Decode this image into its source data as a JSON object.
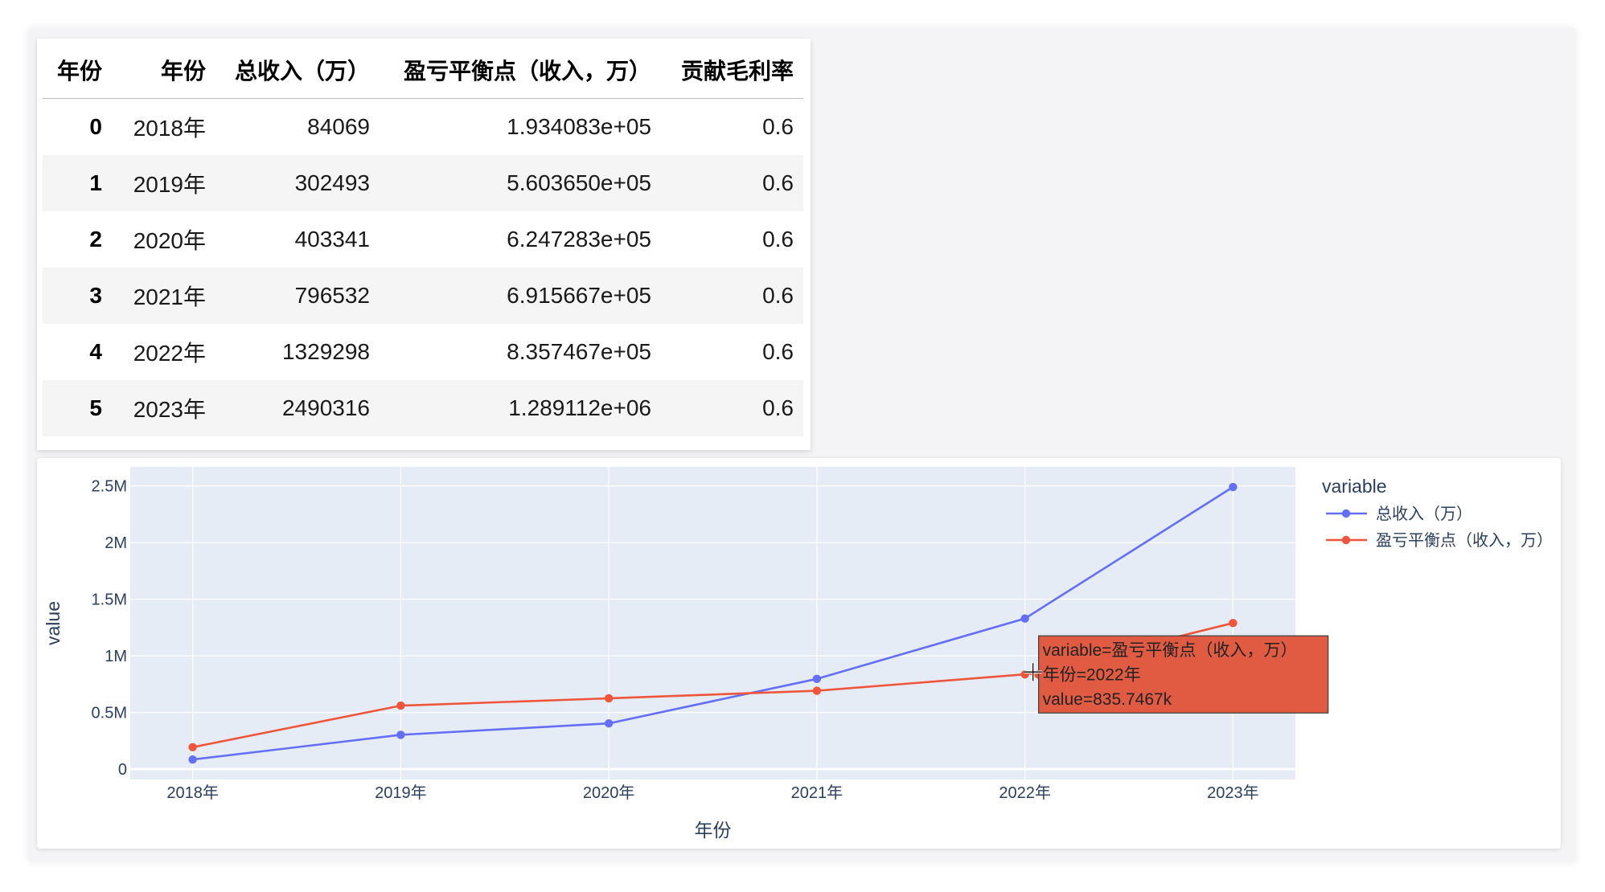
{
  "table": {
    "index_name": "年份",
    "columns": [
      "年份",
      "总收入（万）",
      "盈亏平衡点（收入，万）",
      "贡献毛利率"
    ],
    "rows": [
      {
        "index": "0",
        "values": [
          "2018年",
          "84069",
          "1.934083e+05",
          "0.6"
        ]
      },
      {
        "index": "1",
        "values": [
          "2019年",
          "302493",
          "5.603650e+05",
          "0.6"
        ]
      },
      {
        "index": "2",
        "values": [
          "2020年",
          "403341",
          "6.247283e+05",
          "0.6"
        ]
      },
      {
        "index": "3",
        "values": [
          "2021年",
          "796532",
          "6.915667e+05",
          "0.6"
        ]
      },
      {
        "index": "4",
        "values": [
          "2022年",
          "1329298",
          "8.357467e+05",
          "0.6"
        ]
      },
      {
        "index": "5",
        "values": [
          "2023年",
          "2490316",
          "1.289112e+06",
          "0.6"
        ]
      }
    ]
  },
  "chart_data": {
    "type": "line",
    "x": [
      "2018年",
      "2019年",
      "2020年",
      "2021年",
      "2022年",
      "2023年"
    ],
    "series": [
      {
        "name": "总收入（万）",
        "values": [
          84069,
          302493,
          403341,
          796532,
          1329298,
          2490316
        ],
        "color": "#636efa"
      },
      {
        "name": "盈亏平衡点（收入，万）",
        "values": [
          193408.3,
          560365.0,
          624728.3,
          691566.7,
          835746.7,
          1289112
        ],
        "color": "#ef553b"
      }
    ],
    "xlabel": "年份",
    "ylabel": "value",
    "ylim": [
      -92000,
      2668000
    ],
    "yticks": [
      0,
      500000,
      1000000,
      1500000,
      2000000,
      2500000
    ],
    "ytick_labels": [
      "0",
      "0.5M",
      "1M",
      "1.5M",
      "2M",
      "2.5M"
    ],
    "grid": true,
    "plot_bg": "#e5ecf6",
    "legend": {
      "title": "variable",
      "position": "right"
    },
    "hover": {
      "lines": [
        "variable=盈亏平衡点（收入，万）",
        "年份=2022年",
        "value=835.7467k"
      ],
      "bg": "#e15b43"
    }
  }
}
